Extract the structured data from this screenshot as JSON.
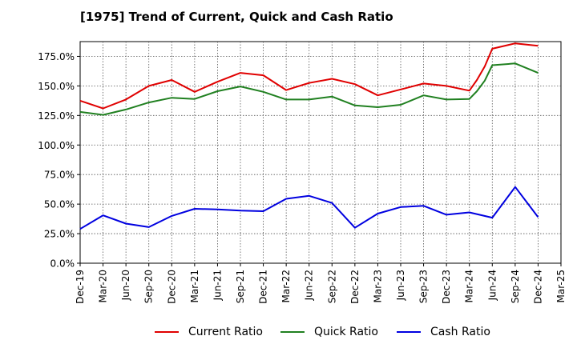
{
  "chart_data": {
    "type": "line",
    "title": "[1975]  Trend of Current, Quick and Cash Ratio",
    "xlabel": "",
    "ylabel": "",
    "ylim": [
      0,
      187.5
    ],
    "y_ticks": [
      0,
      25,
      50,
      75,
      100,
      125,
      150,
      175
    ],
    "y_tick_format": "{v}.0%",
    "y_tick_labels": [
      "0.0%",
      "25.0%",
      "50.0%",
      "75.0%",
      "100.0%",
      "125.0%",
      "150.0%",
      "175.0%"
    ],
    "x_tick_labels": [
      "Dec-19",
      "Mar-20",
      "Jun-20",
      "Sep-20",
      "Dec-20",
      "Mar-21",
      "Jun-21",
      "Sep-21",
      "Dec-21",
      "Mar-22",
      "Jun-22",
      "Sep-22",
      "Dec-22",
      "Mar-23",
      "Jun-23",
      "Sep-23",
      "Dec-23",
      "Mar-24",
      "Jun-24",
      "Sep-24",
      "Dec-24",
      "Mar-25"
    ],
    "grid": true,
    "legend_position": "bottom",
    "series": [
      {
        "name": "Current Ratio",
        "color": "#e00000",
        "x": [
          0,
          1,
          2,
          3,
          4,
          5,
          6,
          7,
          8,
          9,
          10,
          11,
          12,
          13,
          14,
          15,
          16,
          17,
          17.33,
          17.67,
          18,
          19,
          20
        ],
        "values": [
          137.5,
          131,
          138.5,
          150,
          155,
          145,
          153.5,
          161,
          159,
          146.5,
          152.5,
          156,
          151.5,
          142,
          147,
          152,
          150,
          146,
          155,
          166.5,
          181.5,
          186,
          184
        ]
      },
      {
        "name": "Quick Ratio",
        "color": "#208020",
        "x": [
          0,
          1,
          2,
          3,
          4,
          5,
          6,
          7,
          8,
          9,
          10,
          11,
          12,
          13,
          14,
          15,
          16,
          17,
          17.33,
          17.67,
          18,
          19,
          20
        ],
        "values": [
          128,
          125.5,
          130,
          136,
          140,
          139,
          145.5,
          149.5,
          145,
          138.5,
          138.5,
          141,
          133.5,
          132,
          134,
          142,
          138.5,
          139,
          145.5,
          154.5,
          167.5,
          169,
          161
        ]
      },
      {
        "name": "Cash Ratio",
        "color": "#0000e0",
        "x": [
          0,
          1,
          2,
          3,
          4,
          5,
          6,
          7,
          8,
          9,
          10,
          11,
          12,
          13,
          14,
          15,
          16,
          17,
          18,
          19,
          20
        ],
        "values": [
          29,
          40.5,
          33.5,
          30.5,
          40,
          46,
          45.5,
          44.5,
          44,
          54.5,
          57,
          51,
          30,
          42,
          47.5,
          48.5,
          41,
          43,
          38.5,
          64.5,
          39
        ]
      }
    ]
  }
}
